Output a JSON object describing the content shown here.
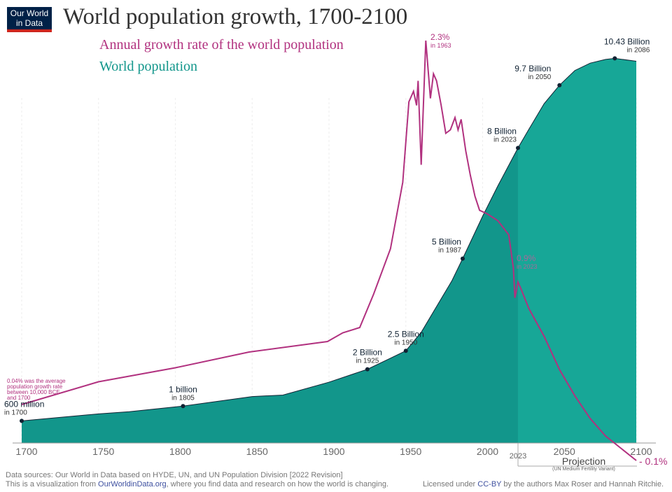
{
  "logo": {
    "line1": "Our World",
    "line2": "in Data"
  },
  "title": "World population growth, 1700-2100",
  "colors": {
    "population": "#12968b",
    "projection": "#17a797",
    "growth": "#b1317f"
  },
  "chart_data": {
    "type": "area+line",
    "title": "World population growth, 1700-2100",
    "x_ticks": [
      1700,
      1750,
      1800,
      1850,
      1900,
      1950,
      2000,
      2050,
      2100
    ],
    "xlim": [
      1700,
      2100
    ],
    "projection_start_label": "2023",
    "projection_label": "Projection",
    "projection_sublabel": "(UN Medium Fertility Variant)",
    "series": [
      {
        "name": "World population",
        "unit": "billion",
        "type": "area",
        "points": [
          [
            1700,
            0.6
          ],
          [
            1750,
            0.79
          ],
          [
            1770,
            0.85
          ],
          [
            1800,
            0.98
          ],
          [
            1805,
            1.0
          ],
          [
            1850,
            1.26
          ],
          [
            1870,
            1.3
          ],
          [
            1900,
            1.65
          ],
          [
            1925,
            2.0
          ],
          [
            1940,
            2.3
          ],
          [
            1950,
            2.5
          ],
          [
            1960,
            3.0
          ],
          [
            1970,
            3.7
          ],
          [
            1980,
            4.4
          ],
          [
            1987,
            5.0
          ],
          [
            2000,
            6.15
          ],
          [
            2010,
            6.98
          ],
          [
            2023,
            8.0
          ],
          [
            2030,
            8.5
          ],
          [
            2040,
            9.2
          ],
          [
            2050,
            9.7
          ],
          [
            2060,
            10.1
          ],
          [
            2070,
            10.3
          ],
          [
            2080,
            10.4
          ],
          [
            2086,
            10.43
          ],
          [
            2100,
            10.35
          ]
        ]
      },
      {
        "name": "Annual growth rate of the world population",
        "unit": "%",
        "type": "line",
        "points": [
          [
            1700,
            0.22
          ],
          [
            1750,
            0.35
          ],
          [
            1800,
            0.43
          ],
          [
            1848,
            0.52
          ],
          [
            1899,
            0.58
          ],
          [
            1909,
            0.63
          ],
          [
            1920,
            0.66
          ],
          [
            1929,
            0.85
          ],
          [
            1940,
            1.11
          ],
          [
            1948,
            1.49
          ],
          [
            1952,
            1.95
          ],
          [
            1955,
            2.01
          ],
          [
            1957,
            1.93
          ],
          [
            1958,
            2.07
          ],
          [
            1960,
            1.59
          ],
          [
            1963,
            2.3
          ],
          [
            1966,
            1.97
          ],
          [
            1968,
            2.11
          ],
          [
            1970,
            2.07
          ],
          [
            1973,
            1.93
          ],
          [
            1976,
            1.77
          ],
          [
            1979,
            1.79
          ],
          [
            1982,
            1.86
          ],
          [
            1984,
            1.79
          ],
          [
            1986,
            1.85
          ],
          [
            1989,
            1.67
          ],
          [
            1992,
            1.53
          ],
          [
            1995,
            1.41
          ],
          [
            1998,
            1.33
          ],
          [
            2003,
            1.31
          ],
          [
            2010,
            1.27
          ],
          [
            2017,
            1.19
          ],
          [
            2020,
            1.0
          ],
          [
            2021,
            0.83
          ],
          [
            2023,
            0.92
          ],
          [
            2025,
            0.88
          ],
          [
            2030,
            0.77
          ],
          [
            2040,
            0.61
          ],
          [
            2050,
            0.42
          ],
          [
            2060,
            0.27
          ],
          [
            2070,
            0.14
          ],
          [
            2080,
            0.04
          ],
          [
            2090,
            -0.03
          ],
          [
            2100,
            -0.1
          ]
        ]
      }
    ],
    "annotations": {
      "population": [
        {
          "year": 1700,
          "value": 0.6,
          "label": "600 million",
          "sub": "in 1700"
        },
        {
          "year": 1805,
          "value": 1.0,
          "label": "1 billion",
          "sub": "in 1805"
        },
        {
          "year": 1925,
          "value": 2.0,
          "label": "2 Billion",
          "sub": "in 1925"
        },
        {
          "year": 1950,
          "value": 2.5,
          "label": "2.5 Billion",
          "sub": "in 1950"
        },
        {
          "year": 1987,
          "value": 5.0,
          "label": "5 Billion",
          "sub": "in 1987"
        },
        {
          "year": 2023,
          "value": 8.0,
          "label": "8 Billion",
          "sub": "in 2023"
        },
        {
          "year": 2050,
          "value": 9.7,
          "label": "9.7 Billion",
          "sub": "in 2050"
        },
        {
          "year": 2086,
          "value": 10.43,
          "label": "10.43 Billion",
          "sub": "in 2086"
        }
      ],
      "growth_peak": {
        "label": "2.3%",
        "sub": "in 1963"
      },
      "growth_2023": {
        "label": "0.9%",
        "sub": "in 2023"
      },
      "growth_2100": {
        "label": "- 0.1%"
      },
      "growth_note": [
        "0.04% was the average",
        "population growth rate",
        "between 10,000 BCE",
        "and 1700"
      ]
    }
  },
  "footer": {
    "sources": "Data sources: Our World in Data based on HYDE, UN, and UN Population Division [2022 Revision]",
    "visualization_pre": "This is a visualization from ",
    "visualization_link": "OurWorldinData.org",
    "visualization_post": ", where you find data and research on how the world is changing.",
    "license_pre": "Licensed under ",
    "license_link": "CC-BY",
    "license_post": " by the authors Max Roser and Hannah Ritchie."
  }
}
